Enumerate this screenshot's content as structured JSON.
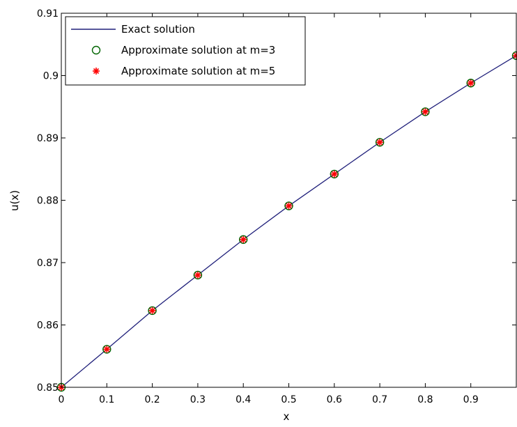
{
  "chart_data": {
    "type": "line",
    "xlabel": "x",
    "ylabel": "u(x)",
    "xlim": [
      0,
      1
    ],
    "ylim": [
      0.85,
      0.91
    ],
    "xticks": [
      0,
      0.1,
      0.2,
      0.3,
      0.4,
      0.5,
      0.6,
      0.7,
      0.8,
      0.9,
      1
    ],
    "xtick_labels": [
      "0",
      "0.1",
      "0.2",
      "0.3",
      "0.4",
      "0.5",
      "0.6",
      "0.7",
      "0.8",
      "0.9",
      ""
    ],
    "yticks": [
      0.85,
      0.86,
      0.87,
      0.88,
      0.89,
      0.9,
      0.91
    ],
    "ytick_labels": [
      "0.85",
      "0.86",
      "0.87",
      "0.88",
      "0.89",
      "0.9",
      "0.91"
    ],
    "grid": false,
    "legend_position": "top-left",
    "x": [
      0,
      0.1,
      0.2,
      0.3,
      0.4,
      0.5,
      0.6,
      0.7,
      0.8,
      0.9,
      1.0
    ],
    "series": [
      {
        "name": "Exact solution",
        "style": "line",
        "color": "#1f1f7a",
        "values": [
          0.85,
          0.8561,
          0.8623,
          0.868,
          0.8737,
          0.8791,
          0.8842,
          0.8893,
          0.8942,
          0.8988,
          0.9032
        ]
      },
      {
        "name": "Approximate solution at m=3",
        "style": "circle",
        "color": "#006400",
        "values": [
          0.85,
          0.8561,
          0.8623,
          0.868,
          0.8737,
          0.8791,
          0.8842,
          0.8893,
          0.8942,
          0.8988,
          0.9032
        ]
      },
      {
        "name": "Approximate solution at m=5",
        "style": "asterisk",
        "color": "#ff0000",
        "values": [
          0.85,
          0.8561,
          0.8623,
          0.868,
          0.8737,
          0.8791,
          0.8842,
          0.8893,
          0.8942,
          0.8988,
          0.9032
        ]
      }
    ]
  }
}
